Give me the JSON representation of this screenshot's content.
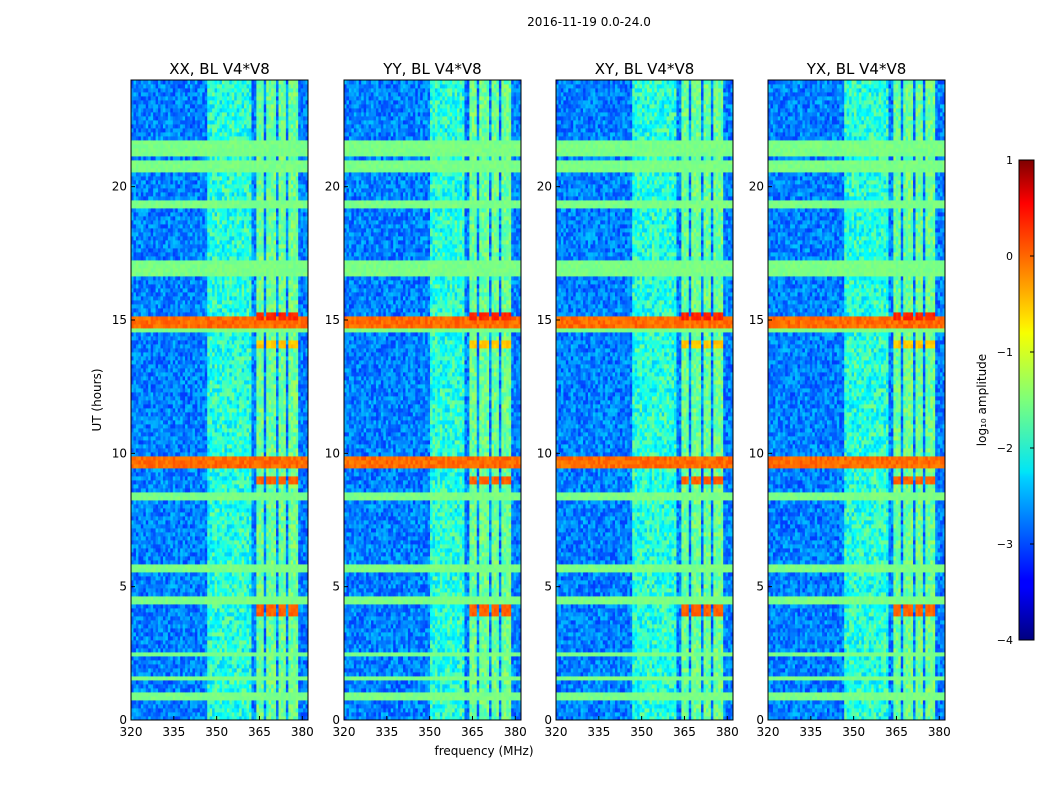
{
  "chart_data": {
    "type": "heatmap",
    "title": "2016-11-19 0.0-24.0",
    "xlabel": "frequency (MHz)",
    "ylabel": "UT (hours)",
    "xlim": [
      320,
      382
    ],
    "ylim": [
      0,
      24
    ],
    "xticks": [
      320,
      335,
      350,
      365,
      380
    ],
    "yticks": [
      0,
      5,
      10,
      15,
      20
    ],
    "panels": [
      {
        "title": "XX, BL V4*V8",
        "quiet_band_mhz": [
          320,
          347
        ]
      },
      {
        "title": "YY, BL V4*V8",
        "quiet_band_mhz": [
          320,
          350
        ]
      },
      {
        "title": "XY, BL V4*V8",
        "quiet_band_mhz": [
          320,
          347
        ]
      },
      {
        "title": "YX, BL V4*V8",
        "quiet_band_mhz": [
          320,
          347
        ]
      }
    ],
    "colorbar": {
      "label": "log₁₀ amplitude",
      "range": [
        -4,
        1
      ],
      "ticks": [
        -4,
        -3,
        -2,
        -1,
        0,
        1
      ],
      "tick_labels": [
        "−4",
        "−3",
        "−2",
        "−1",
        "0",
        "1"
      ],
      "colormap": "jet"
    },
    "features": {
      "rfi_channels_mhz": [
        {
          "f0": 363.5,
          "f1": 366.5,
          "level": -1.3
        },
        {
          "f0": 367.5,
          "f1": 370.5,
          "level": -1.3
        },
        {
          "f0": 371.5,
          "f1": 374.5,
          "level": -1.3
        },
        {
          "f0": 375.5,
          "f1": 378.5,
          "level": -1.3
        }
      ],
      "broadband_bursts_hours": [
        {
          "t0": 14.75,
          "t1": 15.15,
          "level": 0.0
        },
        {
          "t0": 9.5,
          "t1": 9.95,
          "level": 0.0
        }
      ],
      "channel_bursts_hours": [
        {
          "t0": 3.9,
          "t1": 4.3,
          "level": 0.0
        },
        {
          "t0": 8.8,
          "t1": 9.1,
          "level": 0.0
        },
        {
          "t0": 13.9,
          "t1": 14.3,
          "level": -0.5
        },
        {
          "t0": 15.0,
          "t1": 15.3,
          "level": 0.3
        }
      ],
      "flagged_bands_hours": [
        {
          "t0": 20.6,
          "t1": 20.95
        },
        {
          "t0": 19.2,
          "t1": 19.5
        },
        {
          "t0": 16.7,
          "t1": 17.2
        },
        {
          "t0": 14.5,
          "t1": 14.7
        },
        {
          "t0": 8.2,
          "t1": 8.5
        },
        {
          "t0": 4.4,
          "t1": 4.6
        },
        {
          "t0": 5.6,
          "t1": 5.8
        },
        {
          "t0": 0.75,
          "t1": 1.0
        },
        {
          "t0": 1.5,
          "t1": 1.65
        },
        {
          "t0": 2.35,
          "t1": 2.5
        },
        {
          "t0": 21.1,
          "t1": 21.7
        }
      ]
    }
  }
}
